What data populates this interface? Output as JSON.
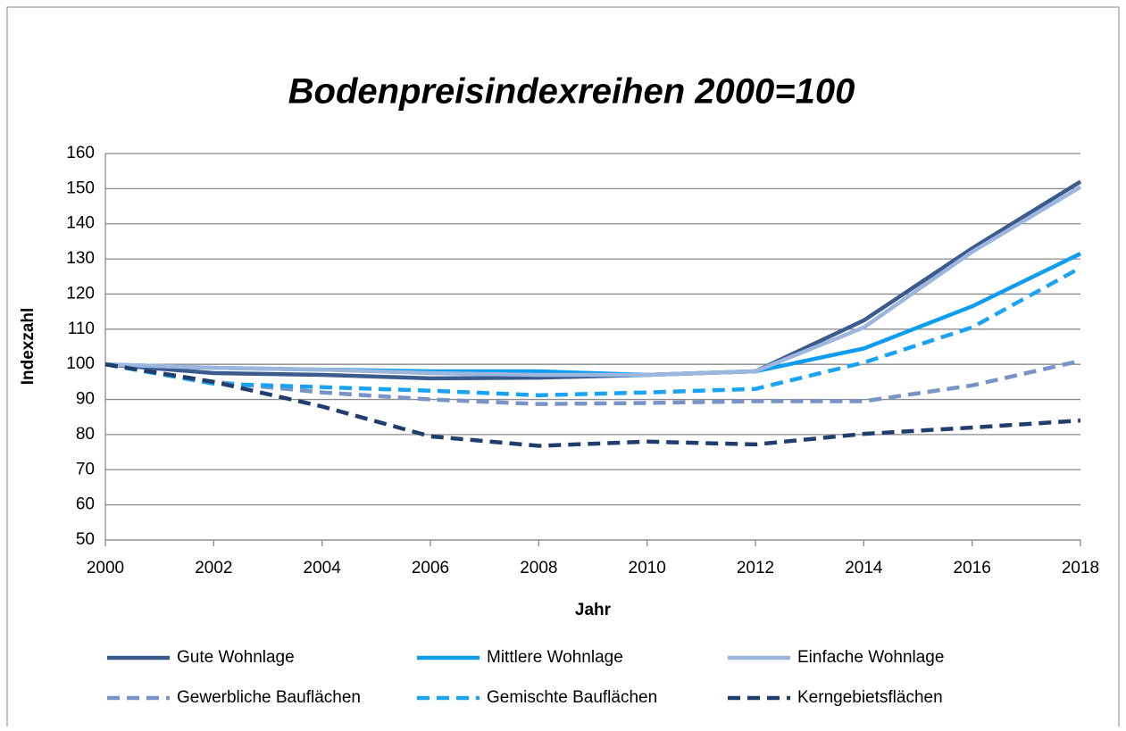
{
  "chart_data": {
    "type": "line",
    "title": "Bodenpreisindexreihen 2000=100",
    "x_label": "Jahr",
    "y_label": "Indexzahl",
    "x": [
      2000,
      2002,
      2004,
      2006,
      2008,
      2010,
      2012,
      2014,
      2016,
      2018
    ],
    "xlim": [
      2000,
      2018
    ],
    "xticks": [
      2000,
      2002,
      2004,
      2006,
      2008,
      2010,
      2012,
      2014,
      2016,
      2018
    ],
    "ylim": [
      50,
      160
    ],
    "yticks": [
      50,
      60,
      70,
      80,
      90,
      100,
      110,
      120,
      130,
      140,
      150,
      160
    ],
    "grid": true,
    "legend": "bottom",
    "series": [
      {
        "name": "Gute Wohnlage",
        "color": "#3b5b8e",
        "dashed": false,
        "values": [
          100,
          97.5,
          97,
          96,
          96.2,
          97,
          98,
          112.5,
          133,
          152
        ]
      },
      {
        "name": "Mittlere Wohnlage",
        "color": "#0f9df0",
        "dashed": false,
        "values": [
          100,
          99,
          98.5,
          98,
          98,
          97,
          98,
          104.5,
          116.5,
          131.5
        ]
      },
      {
        "name": "Einfache Wohnlage",
        "color": "#9db6dd",
        "dashed": false,
        "values": [
          100,
          99,
          98.5,
          97.5,
          97,
          97,
          98,
          110.5,
          132,
          150.5
        ]
      },
      {
        "name": "Gewerbliche Bauflächen",
        "color": "#7894c6",
        "dashed": true,
        "values": [
          100,
          95,
          92,
          90,
          88.7,
          89,
          89.5,
          89.5,
          94,
          101
        ]
      },
      {
        "name": "Gemischte Bauflächen",
        "color": "#1aa3f2",
        "dashed": true,
        "values": [
          100,
          94.5,
          93.5,
          92.5,
          91.2,
          92,
          93,
          100.5,
          110.5,
          127.5
        ]
      },
      {
        "name": "Kerngebietsflächen",
        "color": "#1f3e6d",
        "dashed": true,
        "values": [
          100,
          95,
          88,
          79.5,
          76.8,
          78,
          77.2,
          80.2,
          82,
          84
        ]
      }
    ]
  }
}
